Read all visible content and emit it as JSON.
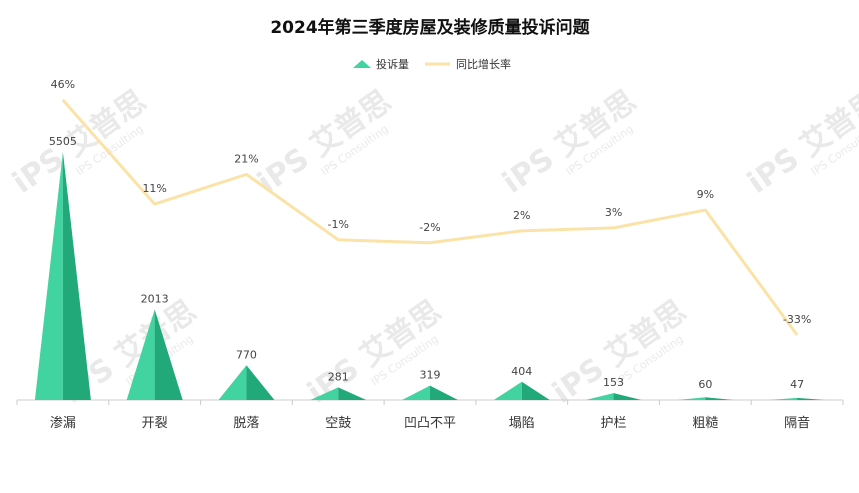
{
  "chart_data": {
    "type": "bar",
    "title": "2024年第三季度房屋及装修质量投诉问题",
    "categories": [
      "渗漏",
      "开裂",
      "脱落",
      "空鼓",
      "凹凸不平",
      "塌陷",
      "护栏",
      "粗糙",
      "隔音"
    ],
    "series": [
      {
        "name": "投诉量",
        "kind": "pictorial-triangle",
        "values": [
          5505,
          2013,
          770,
          281,
          319,
          404,
          153,
          60,
          47
        ]
      },
      {
        "name": "同比增长率",
        "kind": "line",
        "values": [
          46,
          11,
          21,
          -1,
          -2,
          2,
          3,
          9,
          -33
        ],
        "unit": "%"
      }
    ],
    "value_labels": [
      "5505",
      "2013",
      "770",
      "281",
      "319",
      "404",
      "153",
      "60",
      "47"
    ],
    "pct_labels": [
      "46%",
      "11%",
      "21%",
      "-1%",
      "-2%",
      "2%",
      "3%",
      "9%",
      "-33%"
    ],
    "ylim": [
      0,
      5505
    ],
    "y2lim": [
      -40,
      50
    ],
    "legend_position": "top-center",
    "grid": false,
    "colors": {
      "bar_light": "#41d3a0",
      "bar_dark": "#22a97a",
      "line": "#fbe3a8",
      "axis": "#cccccc"
    }
  },
  "watermark": {
    "logo_text": "艾普思",
    "sub_text": "IPS Consulting"
  }
}
